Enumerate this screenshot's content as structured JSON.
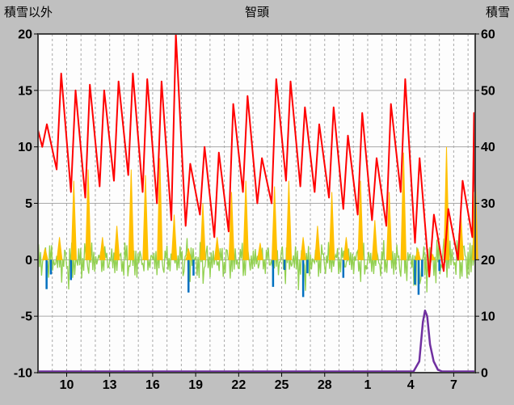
{
  "header": {
    "left_axis_title": "積雪以外",
    "chart_title": "智頭",
    "right_axis_title": "積雪"
  },
  "chart_data": {
    "type": "line",
    "title": "智頭",
    "x_axis": {
      "range": [
        0,
        30.5
      ],
      "tick_labels": [
        "10",
        "13",
        "16",
        "19",
        "22",
        "25",
        "28",
        "1",
        "4",
        "7"
      ],
      "tick_offsets": [
        2,
        5,
        8,
        11,
        14,
        17,
        20,
        23,
        26,
        29
      ],
      "day_gridlines": true
    },
    "left_axis": {
      "label": "積雪以外",
      "range": [
        -10,
        20
      ],
      "ticks": [
        20,
        15,
        10,
        5,
        0,
        -5,
        -10
      ]
    },
    "right_axis": {
      "label": "積雪",
      "range": [
        0,
        60
      ],
      "ticks": [
        60,
        50,
        40,
        30,
        20,
        10,
        0
      ]
    },
    "series": [
      {
        "name": "red-line",
        "color": "#FF0000",
        "kind": "daily-minmax",
        "edge_start": 11.5,
        "edge_end": 6,
        "daily_min": [
          10,
          8,
          6,
          5.5,
          6.5,
          7,
          7.5,
          6,
          5,
          3.5,
          3,
          4,
          2,
          2.5,
          6,
          5,
          5,
          7,
          6.5,
          6,
          5.5,
          4.5,
          4,
          3.5,
          3,
          6,
          1.5,
          -1.5,
          -1,
          0,
          2
        ],
        "daily_max": [
          12,
          16.5,
          15,
          15.5,
          15,
          15.8,
          16.5,
          16,
          15.8,
          20,
          8.5,
          10,
          9.5,
          13.8,
          14.5,
          9,
          16,
          15.8,
          13.5,
          12,
          13.5,
          11,
          13,
          9,
          13.8,
          16,
          9,
          4,
          4.5,
          7,
          13
        ]
      },
      {
        "name": "yellow-spikes",
        "color": "#FFC000",
        "kind": "daily-spike",
        "daily_peak": [
          1,
          2,
          7,
          8,
          2,
          3,
          8,
          7.5,
          9,
          4,
          1,
          5,
          2,
          6,
          7,
          1.5,
          6.5,
          7,
          2,
          3,
          6,
          2,
          7,
          3.5,
          6,
          9.5,
          1,
          0.5,
          10,
          4,
          8
        ]
      },
      {
        "name": "green-noise",
        "color": "#92D050",
        "kind": "noise-envelope",
        "daily_pos": [
          2,
          1.5,
          2,
          2,
          1.5,
          1.5,
          2,
          1.5,
          2,
          1.5,
          2.5,
          2,
          1.5,
          2,
          2,
          1.5,
          2,
          2,
          1.5,
          2,
          2,
          1.5,
          2,
          1.5,
          2,
          2,
          1.5,
          2.5,
          3,
          3,
          2.5
        ],
        "daily_neg": [
          -2,
          -2.5,
          -3.5,
          -2,
          -1.5,
          -2,
          -2.5,
          -1.5,
          -2,
          -1.5,
          -2.5,
          -3,
          -2,
          -2.5,
          -2,
          -1.5,
          -2,
          -2.5,
          -3.5,
          -2,
          -2,
          -1.5,
          -2.5,
          -2,
          -2,
          -2.5,
          -4,
          -3.5,
          -2,
          -2.5,
          -3
        ]
      },
      {
        "name": "blue-spikes",
        "color": "#0070C0",
        "kind": "spikes",
        "points": [
          {
            "t": 0.6,
            "v": -2.6
          },
          {
            "t": 0.9,
            "v": -1.3
          },
          {
            "t": 2.3,
            "v": -1.8
          },
          {
            "t": 10.5,
            "v": -2.9
          },
          {
            "t": 10.85,
            "v": -1.4
          },
          {
            "t": 16.4,
            "v": -2.4
          },
          {
            "t": 17.2,
            "v": -0.9
          },
          {
            "t": 18.5,
            "v": -3.3
          },
          {
            "t": 18.8,
            "v": -1.2
          },
          {
            "t": 21.3,
            "v": -1.6
          },
          {
            "t": 26.3,
            "v": -2.2
          },
          {
            "t": 26.55,
            "v": -3.1
          },
          {
            "t": 26.8,
            "v": -1.5
          },
          {
            "t": 28.0,
            "v": -1.0
          }
        ]
      },
      {
        "name": "purple-snow-line",
        "color": "#7030A0",
        "kind": "line-right-axis",
        "points": [
          {
            "t": 0,
            "v": 0
          },
          {
            "t": 26.2,
            "v": 0
          },
          {
            "t": 26.6,
            "v": 2
          },
          {
            "t": 26.85,
            "v": 9
          },
          {
            "t": 27.0,
            "v": 11
          },
          {
            "t": 27.15,
            "v": 10
          },
          {
            "t": 27.35,
            "v": 5
          },
          {
            "t": 27.6,
            "v": 2
          },
          {
            "t": 27.9,
            "v": 0.5
          },
          {
            "t": 28.2,
            "v": 0
          },
          {
            "t": 30.5,
            "v": 0
          }
        ]
      }
    ],
    "style": {
      "background": "#C0C0C0",
      "plot_background": "#FDFDFD",
      "grid_color": "#A8A8A8",
      "frame_color": "#404040",
      "text_color": "#000000"
    }
  }
}
